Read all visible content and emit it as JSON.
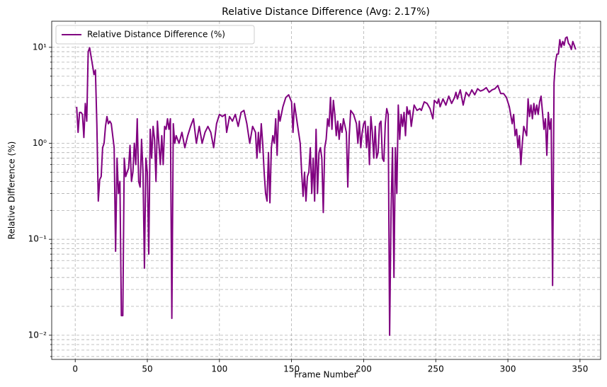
{
  "chart_data": {
    "type": "line",
    "title": "Relative Distance Difference (Avg: 2.17%)",
    "xlabel": "Frame Number",
    "ylabel": "Relative Difference (%)",
    "yscale": "log",
    "grid": true,
    "legend": "upper left",
    "xlim": [
      -16.3,
      364.3
    ],
    "xticks": [
      0,
      50,
      100,
      150,
      200,
      250,
      300,
      350
    ],
    "ylim": [
      0.0056,
      18.7
    ],
    "yticks": [
      {
        "value": 0.01,
        "label": "10⁻²"
      },
      {
        "value": 0.1,
        "label": "10⁻¹"
      },
      {
        "value": 1,
        "label": "10⁰"
      },
      {
        "value": 10,
        "label": "10¹"
      }
    ],
    "yminorticks": [
      0.006,
      0.007,
      0.008,
      0.009,
      0.02,
      0.03,
      0.04,
      0.05,
      0.06,
      0.07,
      0.08,
      0.09,
      0.2,
      0.3,
      0.4,
      0.5,
      0.6,
      0.7,
      0.8,
      0.9,
      2,
      3,
      4,
      5,
      6,
      7,
      8,
      9
    ],
    "x": [
      1,
      2,
      3,
      4,
      5,
      6,
      7,
      8,
      9,
      10,
      11,
      12,
      13,
      14,
      15,
      16,
      17,
      18,
      19,
      20,
      21,
      22,
      23,
      24,
      25,
      26,
      27,
      28,
      29,
      30,
      31,
      32,
      33,
      34,
      35,
      36,
      37,
      38,
      39,
      40,
      41,
      42,
      43,
      44,
      45,
      46,
      47,
      48,
      49,
      50,
      51,
      52,
      53,
      54,
      55,
      56,
      57,
      58,
      59,
      60,
      61,
      62,
      63,
      64,
      65,
      66,
      67,
      68,
      69,
      70,
      72,
      74,
      76,
      78,
      80,
      82,
      84,
      86,
      88,
      90,
      92,
      94,
      96,
      98,
      100,
      102,
      104,
      105,
      107,
      109,
      111,
      113,
      115,
      117,
      119,
      121,
      123,
      125,
      126,
      127,
      128,
      129,
      130,
      131,
      132,
      133,
      134,
      135,
      136,
      137,
      138,
      139,
      140,
      141,
      142,
      144,
      146,
      148,
      150,
      151,
      152,
      154,
      156,
      157,
      158,
      159,
      160,
      161,
      162,
      163,
      164,
      165,
      166,
      167,
      168,
      169,
      170,
      171,
      172,
      173,
      174,
      175,
      176,
      177,
      178,
      179,
      180,
      181,
      182,
      183,
      184,
      185,
      186,
      188,
      189,
      190,
      191,
      193,
      195,
      196,
      197,
      198,
      199,
      200,
      201,
      202,
      203,
      204,
      205,
      206,
      207,
      208,
      209,
      210,
      211,
      212,
      213,
      214,
      215,
      216,
      217,
      218,
      219,
      220,
      221,
      222,
      223,
      224,
      225,
      226,
      227,
      228,
      229,
      230,
      231,
      232,
      233,
      235,
      237,
      239,
      240,
      242,
      244,
      246,
      248,
      249,
      251,
      252,
      253,
      255,
      257,
      259,
      261,
      263,
      264,
      265,
      267,
      268,
      269,
      271,
      273,
      275,
      277,
      279,
      281,
      283,
      285,
      287,
      289,
      291,
      293,
      295,
      297,
      299,
      301,
      303,
      304,
      305,
      306,
      307,
      308,
      309,
      310,
      311,
      313,
      314,
      315,
      316,
      317,
      318,
      319,
      320,
      321,
      322,
      323,
      324,
      325,
      326,
      327,
      328,
      329,
      330,
      331,
      332,
      333,
      334,
      335,
      336,
      337,
      338,
      339,
      340,
      341,
      342,
      343,
      344,
      345,
      346,
      347
    ],
    "series": [
      {
        "name": "Relative Distance Difference (%)",
        "color": "#800080",
        "values": [
          2.4,
          1.3,
          2.1,
          2.1,
          2.0,
          1.15,
          2.6,
          1.7,
          9.0,
          9.9,
          8,
          6.5,
          5.2,
          5.8,
          1.6,
          0.25,
          0.42,
          0.45,
          0.9,
          1.0,
          1.5,
          1.9,
          1.6,
          1.7,
          1.6,
          1.2,
          0.9,
          0.075,
          0.7,
          0.3,
          0.4,
          0.016,
          0.016,
          0.7,
          0.45,
          0.5,
          0.55,
          0.95,
          0.4,
          0.5,
          1.0,
          0.6,
          1.8,
          0.4,
          0.35,
          1.1,
          0.5,
          0.05,
          0.7,
          0.5,
          0.07,
          1.4,
          0.7,
          1.5,
          1.1,
          0.4,
          1.7,
          1.0,
          0.6,
          1.2,
          0.6,
          1.5,
          1.4,
          1.8,
          1.4,
          1.8,
          0.015,
          1.6,
          1.0,
          1.2,
          1.0,
          1.3,
          0.9,
          1.2,
          1.5,
          1.8,
          1.0,
          1.5,
          1.0,
          1.3,
          1.5,
          1.3,
          0.9,
          1.6,
          2.0,
          1.9,
          2.0,
          1.3,
          1.9,
          1.7,
          2.0,
          1.5,
          2.1,
          2.2,
          1.6,
          1.0,
          1.5,
          1.3,
          0.7,
          1.3,
          0.8,
          1.6,
          1.0,
          0.5,
          0.3,
          0.25,
          0.8,
          0.24,
          0.9,
          1.2,
          1.0,
          1.8,
          0.75,
          2.2,
          1.7,
          2.4,
          3.0,
          3.2,
          2.7,
          1.3,
          2.6,
          1.6,
          1.0,
          0.5,
          0.28,
          0.5,
          0.25,
          0.45,
          0.5,
          0.9,
          0.3,
          0.7,
          0.25,
          1.4,
          0.3,
          0.8,
          0.9,
          0.7,
          0.19,
          0.9,
          1.1,
          1.8,
          1.5,
          3.0,
          1.4,
          2.8,
          2.0,
          1.2,
          1.7,
          1.1,
          1.6,
          1.3,
          1.8,
          1.3,
          0.35,
          1.2,
          2.2,
          2.0,
          1.6,
          1.0,
          1.7,
          0.9,
          1.3,
          1.6,
          1.7,
          0.9,
          1.5,
          0.6,
          1.9,
          1.3,
          0.7,
          1.5,
          0.7,
          0.8,
          1.6,
          1.7,
          0.7,
          0.65,
          1.6,
          2.3,
          2.0,
          0.01,
          0.2,
          0.9,
          0.04,
          0.9,
          0.3,
          2.5,
          1.1,
          2.0,
          1.5,
          2.1,
          1.2,
          2.4,
          2.0,
          2.2,
          1.5,
          2.5,
          2.2,
          2.3,
          2.2,
          2.7,
          2.6,
          2.3,
          1.8,
          2.8,
          2.6,
          2.9,
          2.4,
          2.9,
          2.5,
          3.1,
          2.6,
          3.0,
          3.4,
          2.9,
          3.6,
          3.0,
          2.5,
          3.4,
          3.1,
          3.6,
          3.2,
          3.7,
          3.5,
          3.6,
          3.8,
          3.4,
          3.6,
          3.7,
          4.0,
          3.3,
          3.3,
          3.0,
          2.4,
          1.6,
          2.0,
          1.2,
          1.4,
          0.9,
          1.2,
          0.6,
          1.0,
          1.5,
          1.2,
          2.9,
          1.9,
          2.5,
          1.8,
          2.6,
          2.0,
          2.5,
          2.0,
          2.7,
          3.1,
          2.1,
          1.4,
          1.8,
          0.75,
          2.1,
          1.4,
          1.8,
          0.033,
          4.3,
          7,
          8.5,
          8.5,
          12,
          10,
          11.5,
          10.5,
          12.5,
          12.8,
          11,
          10.5,
          9.5,
          11.5,
          10.5,
          9.5
        ]
      }
    ]
  }
}
